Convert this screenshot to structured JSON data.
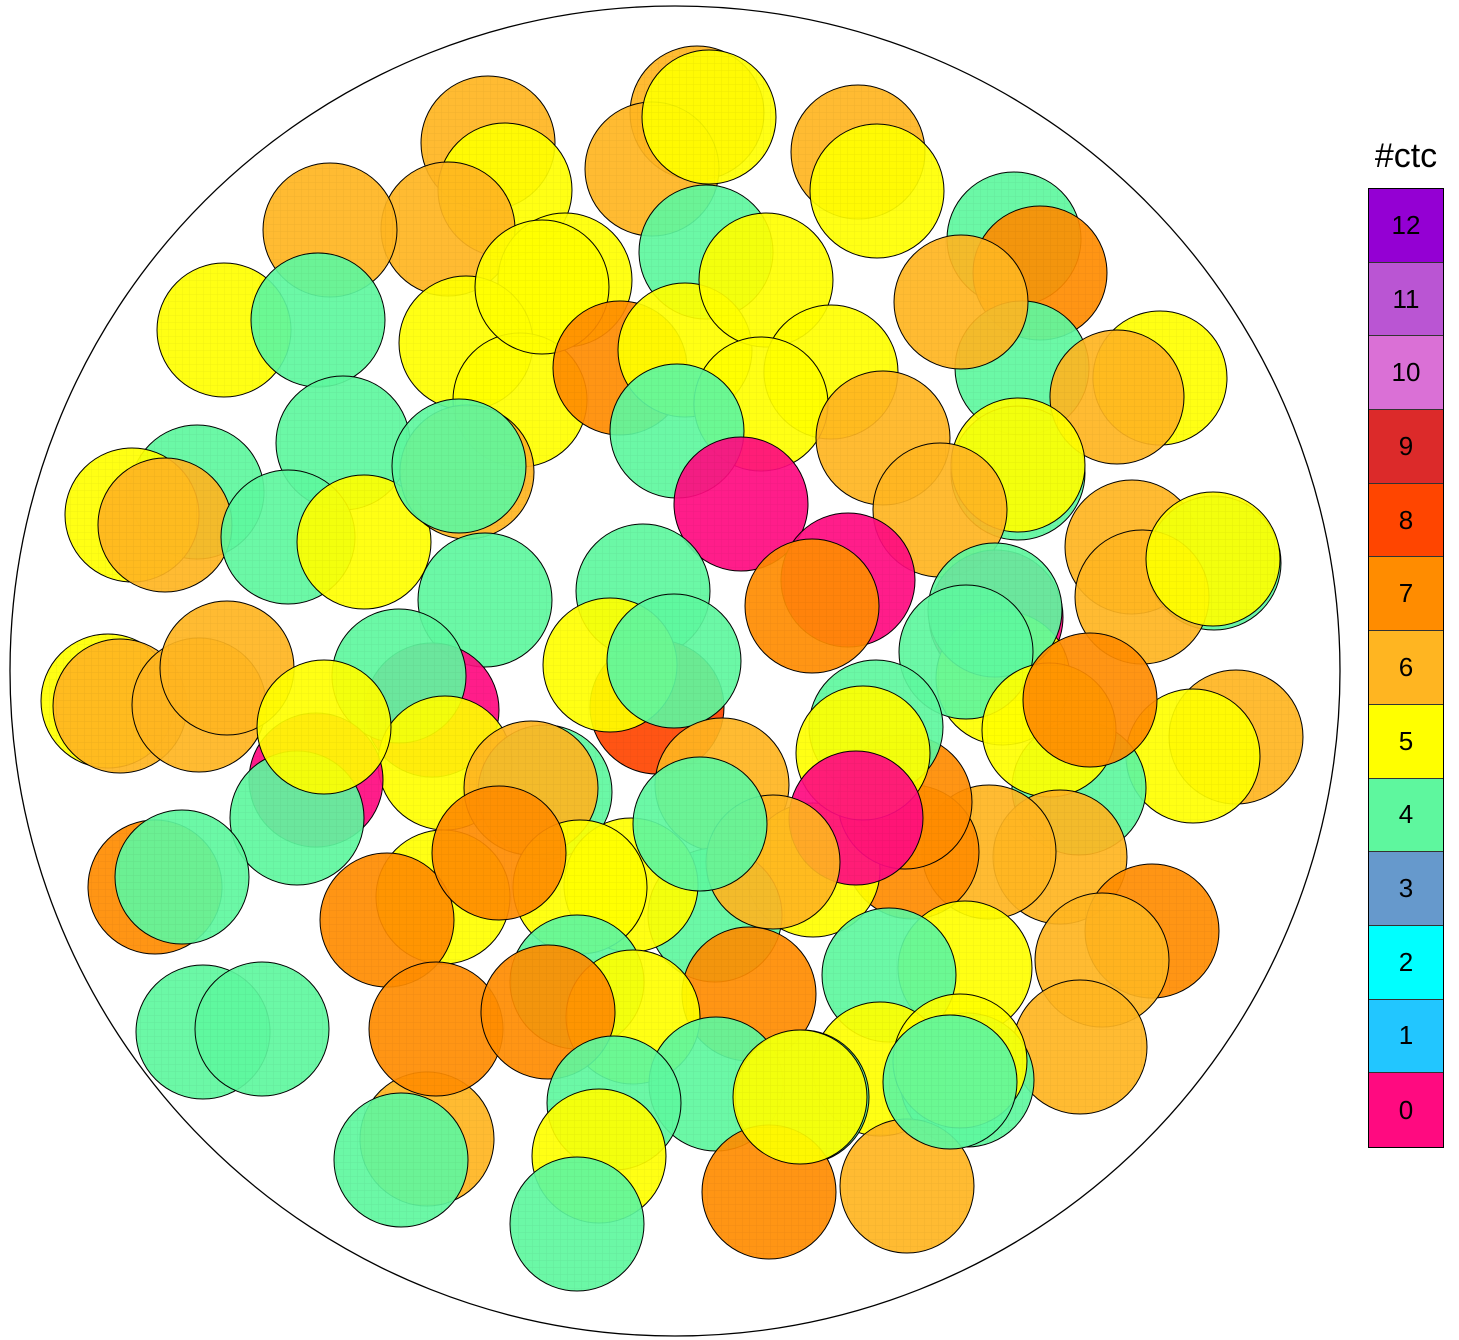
{
  "legend": {
    "title": "#ctc",
    "entries": [
      {
        "label": "12",
        "color": "#9400D3"
      },
      {
        "label": "11",
        "color": "#BA55D3"
      },
      {
        "label": "10",
        "color": "#DA70D6"
      },
      {
        "label": "9",
        "color": "#DC2A2A"
      },
      {
        "label": "8",
        "color": "#FF4500"
      },
      {
        "label": "7",
        "color": "#FF8C00"
      },
      {
        "label": "6",
        "color": "#FFB521"
      },
      {
        "label": "5",
        "color": "#FFFF00"
      },
      {
        "label": "4",
        "color": "#5EF79E"
      },
      {
        "label": "3",
        "color": "#6699CC"
      },
      {
        "label": "2",
        "color": "#00FFFF"
      },
      {
        "label": "1",
        "color": "#22C6FF"
      },
      {
        "label": "0",
        "color": "#FF0A80"
      }
    ]
  },
  "particles_ctc": [
    6,
    5,
    6,
    6,
    5,
    6,
    5,
    6,
    6,
    5,
    4,
    5,
    4,
    4,
    7,
    5,
    4,
    5,
    5,
    5,
    4,
    7,
    5,
    5,
    4,
    6,
    6,
    4,
    5,
    6,
    4,
    6,
    5,
    5,
    5,
    4,
    0,
    5,
    6,
    4,
    4,
    4,
    6,
    5,
    6,
    6,
    0,
    5,
    4,
    4,
    0,
    4,
    7,
    8,
    5,
    4,
    6,
    5,
    6,
    6,
    6,
    6,
    5,
    4,
    5,
    6,
    6,
    7,
    5,
    7,
    4,
    5,
    0,
    4,
    5,
    4,
    6,
    0,
    4,
    5,
    0,
    4,
    5,
    5,
    4,
    6,
    4,
    7,
    4,
    5,
    7,
    7,
    4,
    7,
    6,
    5,
    4,
    7,
    5,
    6,
    4,
    5,
    5,
    4,
    4,
    6,
    4,
    7,
    7,
    4,
    5,
    4,
    7,
    6,
    4,
    5,
    4,
    7
  ]
}
